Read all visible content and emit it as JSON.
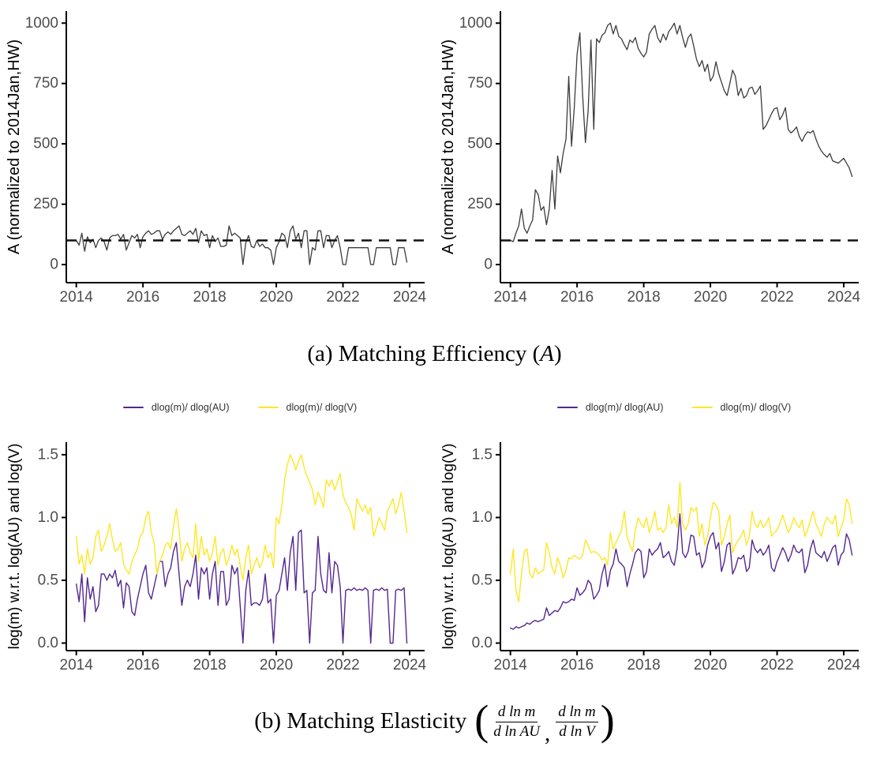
{
  "captions": {
    "a": {
      "prefix": "(a) Matching Efficiency (",
      "variable": "A",
      "suffix": ")"
    },
    "b": {
      "prefix": "(b) Matching Elasticity",
      "open": "(",
      "frac1": {
        "num": "d ln m",
        "den": "d ln AU"
      },
      "separator": ",",
      "frac2": {
        "num": "d ln m",
        "den": "d ln V"
      },
      "close": ")"
    }
  },
  "colors": {
    "axis_line": "#000000",
    "axis_text": "#4d4d4d",
    "series_dark": "#3c3c3c",
    "series_purple": "#54278f",
    "series_yellow": "#fde725",
    "reference_dashed": "#111111",
    "background": "#ffffff"
  },
  "chart_data": [
    {
      "id": "matching-efficiency-left",
      "type": "line",
      "title": "",
      "xlabel": "",
      "ylabel": "A (normalized to 2014Jan,HW)",
      "xlim": [
        2013.7,
        2024.45
      ],
      "ylim": [
        -75,
        1050
      ],
      "xticks": [
        2014,
        2016,
        2018,
        2020,
        2022,
        2024
      ],
      "xtick_labels": [
        "2014",
        "2016",
        "2018",
        "2020",
        "2022",
        "2024"
      ],
      "yticks": [
        0,
        250,
        500,
        750,
        1000
      ],
      "ytick_labels": [
        "0",
        "250",
        "500",
        "750",
        "1000"
      ],
      "grid": "off",
      "legend_position": "none",
      "reference_line": {
        "y": 100,
        "style": "dashed"
      },
      "x_start": 2014.0,
      "x_step": 0.0833333,
      "series": [
        {
          "name": "A",
          "color": "#3c3c3c",
          "values": [
            100,
            80,
            130,
            55,
            115,
            90,
            105,
            70,
            100,
            110,
            95,
            60,
            110,
            120,
            120,
            125,
            105,
            125,
            60,
            90,
            120,
            110,
            125,
            70,
            115,
            130,
            140,
            125,
            130,
            140,
            140,
            105,
            125,
            135,
            125,
            140,
            150,
            160,
            125,
            120,
            130,
            140,
            125,
            150,
            90,
            140,
            120,
            125,
            70,
            120,
            95,
            110,
            75,
            75,
            80,
            160,
            120,
            130,
            120,
            110,
            0,
            90,
            120,
            75,
            70,
            100,
            75,
            85,
            70,
            70,
            60,
            0,
            70,
            95,
            130,
            120,
            70,
            140,
            160,
            105,
            130,
            70,
            140,
            140,
            0,
            70,
            60,
            140,
            140,
            70,
            120,
            120,
            70,
            100,
            120,
            70,
            0,
            0,
            70,
            70,
            70,
            70,
            70,
            70,
            70,
            70,
            0,
            0,
            70,
            70,
            70,
            70,
            70,
            70,
            0,
            0,
            70,
            70,
            70,
            10
          ]
        }
      ]
    },
    {
      "id": "matching-efficiency-right",
      "type": "line",
      "title": "",
      "xlabel": "",
      "ylabel": "A (normalized to 2014Jan,HW)",
      "xlim": [
        2013.7,
        2024.45
      ],
      "ylim": [
        -75,
        1050
      ],
      "xticks": [
        2014,
        2016,
        2018,
        2020,
        2022,
        2024
      ],
      "xtick_labels": [
        "2014",
        "2016",
        "2018",
        "2020",
        "2022",
        "2024"
      ],
      "yticks": [
        0,
        250,
        500,
        750,
        1000
      ],
      "ytick_labels": [
        "0",
        "250",
        "500",
        "750",
        "1000"
      ],
      "grid": "off",
      "legend_position": "none",
      "reference_line": {
        "y": 100,
        "style": "dashed"
      },
      "x_start": 2014.0,
      "x_step": 0.0833333,
      "series": [
        {
          "name": "A",
          "color": "#3c3c3c",
          "values": [
            100,
            95,
            130,
            160,
            230,
            150,
            130,
            160,
            185,
            310,
            290,
            225,
            240,
            165,
            230,
            390,
            230,
            450,
            380,
            460,
            520,
            780,
            490,
            650,
            870,
            960,
            700,
            505,
            640,
            930,
            560,
            935,
            920,
            950,
            960,
            990,
            1000,
            955,
            990,
            945,
            935,
            910,
            890,
            930,
            920,
            940,
            895,
            875,
            860,
            880,
            955,
            975,
            990,
            940,
            920,
            955,
            930,
            965,
            980,
            1000,
            955,
            990,
            940,
            900,
            940,
            955,
            905,
            850,
            820,
            845,
            800,
            830,
            760,
            780,
            840,
            790,
            755,
            720,
            700,
            750,
            805,
            780,
            700,
            730,
            690,
            700,
            730,
            735,
            705,
            720,
            740,
            560,
            575,
            600,
            625,
            645,
            650,
            600,
            620,
            650,
            560,
            545,
            555,
            570,
            530,
            510,
            535,
            550,
            545,
            555,
            520,
            490,
            470,
            455,
            445,
            460,
            430,
            425,
            420,
            430,
            440,
            420,
            400,
            365
          ]
        }
      ]
    },
    {
      "id": "matching-elasticity-left",
      "type": "line",
      "title": "",
      "xlabel": "",
      "ylabel": "log(m) w.r.t. log(AU) and log(V)",
      "xlim": [
        2013.7,
        2024.45
      ],
      "ylim": [
        -0.06,
        1.6
      ],
      "xticks": [
        2014,
        2016,
        2018,
        2020,
        2022,
        2024
      ],
      "xtick_labels": [
        "2014",
        "2016",
        "2018",
        "2020",
        "2022",
        "2024"
      ],
      "yticks": [
        0.0,
        0.5,
        1.0,
        1.5
      ],
      "ytick_labels": [
        "0.0",
        "0.5",
        "1.0",
        "1.5"
      ],
      "grid": "off",
      "legend_position": "top",
      "x_start": 2014.0,
      "x_step": 0.0833333,
      "series": [
        {
          "name": "dlog(m)/ dlog(AU)",
          "color": "#54278f",
          "values": [
            0.47,
            0.33,
            0.55,
            0.17,
            0.52,
            0.35,
            0.45,
            0.25,
            0.3,
            0.55,
            0.55,
            0.5,
            0.55,
            0.52,
            0.58,
            0.45,
            0.5,
            0.28,
            0.48,
            0.45,
            0.25,
            0.22,
            0.35,
            0.45,
            0.55,
            0.62,
            0.4,
            0.35,
            0.45,
            0.55,
            0.65,
            0.65,
            0.45,
            0.55,
            0.6,
            0.73,
            0.8,
            0.55,
            0.3,
            0.45,
            0.5,
            0.45,
            0.55,
            0.7,
            0.35,
            0.6,
            0.55,
            0.6,
            0.35,
            0.55,
            0.65,
            0.3,
            0.57,
            0.57,
            0.3,
            0.35,
            0.62,
            0.55,
            0.6,
            0.3,
            0.0,
            0.42,
            0.58,
            0.3,
            0.32,
            0.32,
            0.3,
            0.35,
            0.55,
            0.32,
            0.35,
            0.0,
            0.38,
            0.42,
            0.55,
            0.68,
            0.42,
            0.72,
            0.85,
            0.42,
            0.88,
            0.9,
            0.4,
            0.42,
            0.0,
            0.4,
            0.42,
            0.85,
            0.55,
            0.42,
            0.4,
            0.72,
            0.4,
            0.65,
            0.62,
            0.45,
            0.0,
            0.42,
            0.43,
            0.42,
            0.44,
            0.42,
            0.43,
            0.42,
            0.44,
            0.42,
            0.0,
            0.42,
            0.43,
            0.42,
            0.44,
            0.42,
            0.43,
            0.0,
            0.0,
            0.42,
            0.43,
            0.42,
            0.44,
            0.0
          ]
        },
        {
          "name": "dlog(m)/ dlog(V)",
          "color": "#fde725",
          "values": [
            0.85,
            0.63,
            0.7,
            0.55,
            0.75,
            0.63,
            0.68,
            0.85,
            0.9,
            0.73,
            0.78,
            0.85,
            0.95,
            0.83,
            0.73,
            0.75,
            0.8,
            0.63,
            0.58,
            0.55,
            0.65,
            0.7,
            0.75,
            0.85,
            0.88,
            1.0,
            1.05,
            0.88,
            0.8,
            0.55,
            0.65,
            0.7,
            0.78,
            0.8,
            0.75,
            0.93,
            1.07,
            0.9,
            0.65,
            0.75,
            0.8,
            0.72,
            0.68,
            0.95,
            0.65,
            0.85,
            0.7,
            0.75,
            0.65,
            0.72,
            0.85,
            0.62,
            0.72,
            0.75,
            0.62,
            0.68,
            0.78,
            0.7,
            0.75,
            0.62,
            0.5,
            0.68,
            0.78,
            0.55,
            0.62,
            0.68,
            0.6,
            0.65,
            0.78,
            0.68,
            0.72,
            0.6,
            1.0,
            0.95,
            1.1,
            1.3,
            1.42,
            1.5,
            1.45,
            1.38,
            1.45,
            1.5,
            1.4,
            1.33,
            1.28,
            1.22,
            1.1,
            1.2,
            1.15,
            1.08,
            1.3,
            1.25,
            1.3,
            1.22,
            1.28,
            1.35,
            1.18,
            1.12,
            1.08,
            1.02,
            0.9,
            1.15,
            1.1,
            1.05,
            1.1,
            1.03,
            1.08,
            0.85,
            0.92,
            1.0,
            0.95,
            0.9,
            1.05,
            1.1,
            1.15,
            1.03,
            1.1,
            1.2,
            1.05,
            0.88
          ]
        }
      ]
    },
    {
      "id": "matching-elasticity-right",
      "type": "line",
      "title": "",
      "xlabel": "",
      "ylabel": "log(m) w.r.t. log(AU) and log(V)",
      "xlim": [
        2013.7,
        2024.45
      ],
      "ylim": [
        -0.06,
        1.6
      ],
      "xticks": [
        2014,
        2016,
        2018,
        2020,
        2022,
        2024
      ],
      "xtick_labels": [
        "2014",
        "2016",
        "2018",
        "2020",
        "2022",
        "2024"
      ],
      "yticks": [
        0.0,
        0.5,
        1.0,
        1.5
      ],
      "ytick_labels": [
        "0.0",
        "0.5",
        "1.0",
        "1.5"
      ],
      "grid": "off",
      "legend_position": "top",
      "x_start": 2014.0,
      "x_step": 0.0833333,
      "series": [
        {
          "name": "dlog(m)/ dlog(AU)",
          "color": "#54278f",
          "values": [
            0.12,
            0.11,
            0.13,
            0.12,
            0.13,
            0.14,
            0.16,
            0.15,
            0.17,
            0.18,
            0.17,
            0.18,
            0.19,
            0.28,
            0.22,
            0.24,
            0.26,
            0.25,
            0.28,
            0.33,
            0.32,
            0.33,
            0.35,
            0.34,
            0.44,
            0.38,
            0.4,
            0.43,
            0.5,
            0.47,
            0.35,
            0.38,
            0.42,
            0.55,
            0.63,
            0.45,
            0.58,
            0.63,
            0.75,
            0.65,
            0.63,
            0.6,
            0.45,
            0.55,
            0.63,
            0.72,
            0.75,
            0.73,
            0.52,
            0.57,
            0.75,
            0.7,
            0.73,
            0.75,
            0.8,
            0.68,
            0.7,
            0.73,
            0.65,
            0.62,
            0.75,
            1.03,
            0.72,
            0.68,
            0.73,
            0.86,
            0.85,
            0.7,
            0.72,
            0.6,
            0.65,
            0.78,
            0.85,
            0.88,
            0.75,
            0.8,
            0.57,
            0.65,
            0.78,
            0.8,
            0.55,
            0.6,
            0.68,
            0.67,
            0.7,
            0.57,
            0.6,
            0.82,
            0.75,
            0.72,
            0.75,
            0.7,
            0.73,
            0.78,
            0.6,
            0.57,
            0.65,
            0.7,
            0.76,
            0.72,
            0.65,
            0.7,
            0.78,
            0.73,
            0.72,
            0.75,
            0.56,
            0.62,
            0.75,
            0.82,
            0.72,
            0.7,
            0.68,
            0.73,
            0.65,
            0.7,
            0.76,
            0.78,
            0.62,
            0.7,
            0.73,
            0.87,
            0.82,
            0.7
          ]
        },
        {
          "name": "dlog(m)/ dlog(V)",
          "color": "#fde725",
          "values": [
            0.55,
            0.75,
            0.42,
            0.33,
            0.55,
            0.73,
            0.75,
            0.55,
            0.52,
            0.6,
            0.55,
            0.57,
            0.58,
            0.8,
            0.72,
            0.6,
            0.55,
            0.68,
            0.62,
            0.52,
            0.58,
            0.68,
            0.67,
            0.7,
            0.68,
            0.67,
            0.7,
            0.82,
            0.78,
            0.72,
            0.73,
            0.72,
            0.7,
            0.66,
            0.68,
            0.62,
            0.88,
            0.75,
            0.8,
            0.85,
            0.9,
            1.05,
            0.85,
            0.78,
            0.73,
            0.9,
            1.0,
            0.95,
            0.92,
            1.0,
            0.88,
            0.95,
            1.05,
            0.9,
            0.92,
            0.88,
            0.92,
            1.1,
            0.95,
            1.0,
            0.92,
            1.28,
            0.95,
            0.9,
            0.95,
            1.08,
            1.05,
            1.08,
            0.85,
            0.95,
            0.78,
            0.85,
            1.0,
            1.12,
            1.1,
            1.05,
            0.78,
            0.85,
            0.95,
            1.02,
            0.72,
            0.78,
            0.82,
            0.85,
            0.9,
            0.78,
            0.85,
            1.05,
            0.95,
            0.92,
            0.98,
            0.92,
            0.95,
            1.0,
            0.85,
            0.88,
            0.9,
            0.95,
            1.02,
            0.95,
            0.88,
            0.92,
            1.0,
            0.95,
            0.92,
            0.98,
            0.85,
            0.9,
            0.98,
            1.05,
            0.95,
            0.9,
            0.85,
            0.95,
            1.0,
            0.97,
            0.95,
            1.02,
            0.85,
            0.92,
            0.98,
            1.15,
            1.1,
            0.95
          ]
        }
      ]
    }
  ]
}
